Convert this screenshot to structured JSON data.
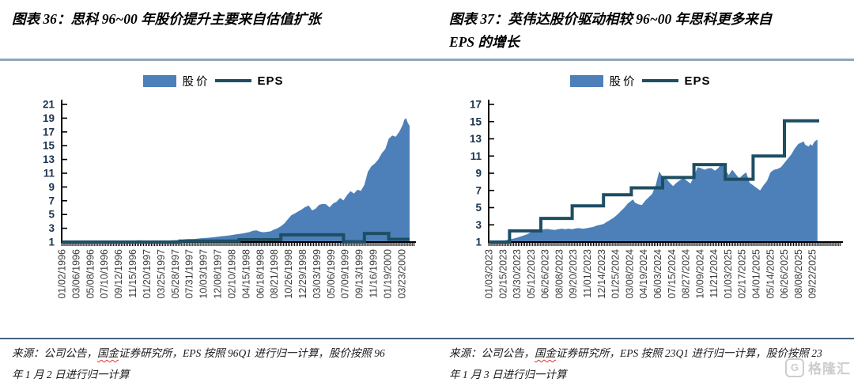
{
  "colors": {
    "area_fill": "#4d80b8",
    "eps_line": "#1d4e63",
    "axis": "#000000",
    "y_tick_label": "#1a3550",
    "x_tick_label": "#3d3d3d",
    "top_rule": "#8fa6ba",
    "bottom_rule": "#46637f",
    "spellcheck_squiggle": "#e03030",
    "watermark_gray": "#c8c8cc"
  },
  "watermark": {
    "logo_letter": "G",
    "text": "格隆汇"
  },
  "chart_data": [
    {
      "type": "combo",
      "title": "图表 36：思科 96~00 年股价提升主要来自估值扩张",
      "title_lines": [
        "图表 36：思科 96~00 年股价提升主要来自估值扩张",
        ""
      ],
      "ylim": [
        1,
        21
      ],
      "yticks": [
        1,
        3,
        5,
        7,
        9,
        11,
        13,
        15,
        17,
        19,
        21
      ],
      "x_tick_labels": [
        "01/02/1996",
        "03/06/1996",
        "05/08/1996",
        "07/10/1996",
        "09/12/1996",
        "11/15/1996",
        "01/20/1997",
        "03/25/1997",
        "05/28/1997",
        "07/31/1997",
        "10/03/1997",
        "12/08/1997",
        "02/10/1998",
        "04/15/1998",
        "06/18/1998",
        "08/21/1998",
        "10/26/1998",
        "12/29/1998",
        "03/03/1999",
        "05/06/1999",
        "07/09/1999",
        "09/13/1999",
        "11/16/1999",
        "01/19/2000",
        "03/23/2000"
      ],
      "x_label_span": 0.977,
      "grid": false,
      "legend_position": "top-center",
      "series": [
        {
          "name": "股价",
          "type": "area",
          "points": [
            [
              0,
              1.02
            ],
            [
              0.02,
              1.05
            ],
            [
              0.04,
              1.07
            ],
            [
              0.06,
              1.05
            ],
            [
              0.08,
              1.08
            ],
            [
              0.1,
              1.1
            ],
            [
              0.12,
              1.15
            ],
            [
              0.14,
              1.1
            ],
            [
              0.16,
              1.12
            ],
            [
              0.18,
              1.08
            ],
            [
              0.2,
              1.15
            ],
            [
              0.22,
              1.28
            ],
            [
              0.24,
              1.22
            ],
            [
              0.26,
              1.12
            ],
            [
              0.28,
              1.1
            ],
            [
              0.3,
              1.18
            ],
            [
              0.32,
              1.25
            ],
            [
              0.34,
              1.3
            ],
            [
              0.36,
              1.42
            ],
            [
              0.38,
              1.45
            ],
            [
              0.4,
              1.55
            ],
            [
              0.42,
              1.62
            ],
            [
              0.44,
              1.72
            ],
            [
              0.46,
              1.85
            ],
            [
              0.48,
              1.95
            ],
            [
              0.5,
              2.1
            ],
            [
              0.52,
              2.25
            ],
            [
              0.54,
              2.45
            ],
            [
              0.55,
              2.65
            ],
            [
              0.56,
              2.7
            ],
            [
              0.57,
              2.5
            ],
            [
              0.58,
              2.42
            ],
            [
              0.6,
              2.55
            ],
            [
              0.61,
              2.8
            ],
            [
              0.62,
              3.0
            ],
            [
              0.63,
              3.3
            ],
            [
              0.64,
              3.7
            ],
            [
              0.65,
              4.3
            ],
            [
              0.66,
              4.9
            ],
            [
              0.67,
              5.15
            ],
            [
              0.68,
              5.45
            ],
            [
              0.69,
              5.75
            ],
            [
              0.7,
              6.1
            ],
            [
              0.71,
              6.3
            ],
            [
              0.72,
              5.6
            ],
            [
              0.73,
              5.85
            ],
            [
              0.74,
              6.4
            ],
            [
              0.75,
              6.55
            ],
            [
              0.76,
              6.5
            ],
            [
              0.77,
              6.05
            ],
            [
              0.78,
              6.6
            ],
            [
              0.79,
              6.85
            ],
            [
              0.8,
              7.4
            ],
            [
              0.81,
              7.05
            ],
            [
              0.82,
              7.8
            ],
            [
              0.83,
              8.4
            ],
            [
              0.84,
              8.05
            ],
            [
              0.85,
              8.6
            ],
            [
              0.86,
              8.45
            ],
            [
              0.87,
              9.3
            ],
            [
              0.88,
              11.2
            ],
            [
              0.89,
              12.0
            ],
            [
              0.9,
              12.4
            ],
            [
              0.91,
              13.0
            ],
            [
              0.92,
              13.9
            ],
            [
              0.93,
              14.5
            ],
            [
              0.94,
              16.0
            ],
            [
              0.95,
              16.5
            ],
            [
              0.96,
              16.3
            ],
            [
              0.97,
              17.0
            ],
            [
              0.98,
              18.0
            ],
            [
              0.985,
              18.8
            ],
            [
              0.99,
              19.0
            ],
            [
              0.995,
              18.3
            ],
            [
              1.0,
              17.9
            ]
          ]
        },
        {
          "name": "EPS",
          "type": "step-line",
          "end_x": 1.0,
          "points": [
            [
              0,
              1.0
            ],
            [
              0.34,
              1.15
            ],
            [
              0.51,
              1.35
            ],
            [
              0.63,
              2.05
            ],
            [
              0.81,
              1.05
            ],
            [
              0.87,
              2.25
            ],
            [
              0.94,
              1.4
            ]
          ]
        }
      ],
      "source": {
        "prefix": "来源：公司公告，",
        "flagged": "国金",
        "line1_rest": "证券研究所，EPS 按照 96Q1 进行归一计算，股价按照 96",
        "line2": "年 1 月 2 日进行归一计算"
      }
    },
    {
      "type": "combo",
      "title": "图表 37：英伟达股价驱动相较 96~00 年思科更多来自 EPS 的增长",
      "title_lines": [
        "图表 37：英伟达股价驱动相较 96~00 年思科更多来自",
        "EPS 的增长"
      ],
      "ylim": [
        1,
        17
      ],
      "yticks": [
        1,
        3,
        5,
        7,
        9,
        11,
        13,
        15,
        17
      ],
      "x_tick_labels": [
        "01/03/2023",
        "02/15/2023",
        "03/30/2023",
        "05/12/2023",
        "06/26/2023",
        "08/08/2023",
        "09/20/2023",
        "11/01/2023",
        "12/14/2023",
        "01/25/2024",
        "03/08/2024",
        "04/19/2024",
        "06/03/2024",
        "07/15/2024",
        "08/27/2024",
        "10/09/2024",
        "11/21/2024",
        "01/03/2025",
        "02/17/2025",
        "04/01/2025",
        "05/14/2025",
        "06/26/2025",
        "08/08/2025",
        "09/22/2025"
      ],
      "x_label_span": 0.93,
      "grid": false,
      "legend_position": "top-center",
      "series": [
        {
          "name": "股价",
          "type": "area",
          "points": [
            [
              0,
              1.05
            ],
            [
              0.01,
              1.1
            ],
            [
              0.02,
              1.08
            ],
            [
              0.03,
              1.12
            ],
            [
              0.04,
              1.15
            ],
            [
              0.05,
              1.22
            ],
            [
              0.06,
              1.3
            ],
            [
              0.07,
              1.4
            ],
            [
              0.08,
              1.5
            ],
            [
              0.09,
              1.62
            ],
            [
              0.1,
              1.75
            ],
            [
              0.11,
              1.9
            ],
            [
              0.12,
              2.1
            ],
            [
              0.13,
              2.2
            ],
            [
              0.14,
              2.35
            ],
            [
              0.15,
              2.4
            ],
            [
              0.16,
              2.5
            ],
            [
              0.17,
              2.52
            ],
            [
              0.18,
              2.45
            ],
            [
              0.19,
              2.42
            ],
            [
              0.2,
              2.5
            ],
            [
              0.21,
              2.55
            ],
            [
              0.22,
              2.5
            ],
            [
              0.23,
              2.55
            ],
            [
              0.24,
              2.5
            ],
            [
              0.25,
              2.58
            ],
            [
              0.26,
              2.62
            ],
            [
              0.27,
              2.55
            ],
            [
              0.28,
              2.6
            ],
            [
              0.29,
              2.68
            ],
            [
              0.3,
              2.75
            ],
            [
              0.31,
              2.9
            ],
            [
              0.32,
              3.0
            ],
            [
              0.33,
              3.1
            ],
            [
              0.34,
              3.35
            ],
            [
              0.35,
              3.6
            ],
            [
              0.36,
              3.85
            ],
            [
              0.37,
              4.2
            ],
            [
              0.38,
              4.6
            ],
            [
              0.39,
              5.0
            ],
            [
              0.4,
              5.5
            ],
            [
              0.41,
              5.8
            ],
            [
              0.415,
              5.95
            ],
            [
              0.42,
              5.6
            ],
            [
              0.43,
              5.4
            ],
            [
              0.44,
              5.3
            ],
            [
              0.45,
              5.8
            ],
            [
              0.46,
              6.2
            ],
            [
              0.47,
              6.6
            ],
            [
              0.48,
              7.6
            ],
            [
              0.49,
              9.2
            ],
            [
              0.5,
              8.6
            ],
            [
              0.51,
              8.4
            ],
            [
              0.52,
              7.9
            ],
            [
              0.53,
              7.5
            ],
            [
              0.54,
              7.9
            ],
            [
              0.55,
              8.2
            ],
            [
              0.56,
              8.45
            ],
            [
              0.57,
              8.1
            ],
            [
              0.58,
              7.8
            ],
            [
              0.59,
              8.6
            ],
            [
              0.6,
              9.7
            ],
            [
              0.61,
              9.6
            ],
            [
              0.62,
              9.4
            ],
            [
              0.63,
              9.55
            ],
            [
              0.64,
              9.6
            ],
            [
              0.65,
              9.3
            ],
            [
              0.66,
              9.6
            ],
            [
              0.67,
              10.2
            ],
            [
              0.68,
              9.4
            ],
            [
              0.69,
              8.8
            ],
            [
              0.7,
              9.4
            ],
            [
              0.71,
              8.9
            ],
            [
              0.72,
              8.4
            ],
            [
              0.73,
              8.8
            ],
            [
              0.74,
              9.1
            ],
            [
              0.75,
              7.9
            ],
            [
              0.76,
              7.6
            ],
            [
              0.77,
              7.3
            ],
            [
              0.78,
              7.0
            ],
            [
              0.79,
              7.6
            ],
            [
              0.8,
              8.1
            ],
            [
              0.81,
              9.1
            ],
            [
              0.82,
              9.4
            ],
            [
              0.83,
              9.5
            ],
            [
              0.84,
              9.7
            ],
            [
              0.85,
              10.2
            ],
            [
              0.86,
              10.7
            ],
            [
              0.87,
              11.2
            ],
            [
              0.88,
              11.9
            ],
            [
              0.89,
              12.4
            ],
            [
              0.9,
              12.6
            ],
            [
              0.905,
              12.7
            ],
            [
              0.91,
              12.3
            ],
            [
              0.92,
              12.1
            ],
            [
              0.925,
              12.4
            ],
            [
              0.93,
              12.2
            ],
            [
              0.935,
              12.6
            ],
            [
              0.94,
              12.8
            ],
            [
              0.945,
              12.9
            ]
          ]
        },
        {
          "name": "EPS",
          "type": "step-line",
          "end_x": 0.95,
          "points": [
            [
              0,
              1.0
            ],
            [
              0.06,
              2.3
            ],
            [
              0.15,
              3.75
            ],
            [
              0.24,
              5.2
            ],
            [
              0.33,
              6.5
            ],
            [
              0.41,
              7.3
            ],
            [
              0.5,
              8.5
            ],
            [
              0.59,
              10.0
            ],
            [
              0.68,
              8.3
            ],
            [
              0.76,
              11.0
            ],
            [
              0.85,
              15.1
            ]
          ]
        }
      ],
      "source": {
        "prefix": "来源：公司公告，",
        "flagged": "国金",
        "line1_rest": "证券研究所，EPS 按照 23Q1 进行归一计算，股价按照 23",
        "line2": "年 1 月 3 日进行归一计算"
      }
    }
  ]
}
